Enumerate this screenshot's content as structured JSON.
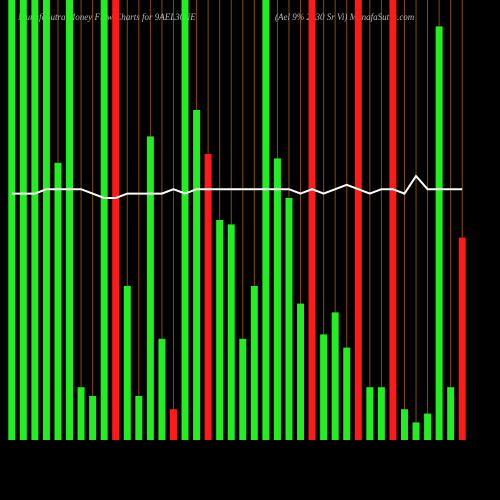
{
  "chart_data": {
    "type": "bar",
    "title": "MunafaSutra Money Flow Charts for 9AEL30NE",
    "subtitle": "(Ael 9% 2030 Sr Vi) MunafaSutra.com",
    "ylim": [
      0,
      100
    ],
    "series": [
      {
        "name": "Money flow",
        "colors": [
          "#22ee22",
          "#22ee22",
          "#22ee22",
          "#22ee22",
          "#22ee22",
          "#22ee22",
          "#22ee22",
          "#22ee22",
          "#22ee22",
          "#ff1a1a",
          "#22ee22",
          "#22ee22",
          "#22ee22",
          "#22ee22",
          "#ff1a1a",
          "#22ee22",
          "#22ee22",
          "#ff1a1a",
          "#22ee22",
          "#22ee22",
          "#22ee22",
          "#22ee22",
          "#22ee22",
          "#22ee22",
          "#22ee22",
          "#22ee22",
          "#ff1a1a",
          "#22ee22",
          "#22ee22",
          "#22ee22",
          "#ff1a1a",
          "#22ee22",
          "#22ee22",
          "#ff1a1a",
          "#22ee22",
          "#22ee22",
          "#22ee22",
          "#22ee22",
          "#22ee22",
          "#ff1a1a"
        ],
        "values": [
          100,
          100,
          100,
          100,
          63,
          100,
          12,
          10,
          100,
          100,
          35,
          10,
          69,
          23,
          7,
          100,
          75,
          65,
          50,
          49,
          23,
          35,
          100,
          64,
          55,
          31,
          100,
          24,
          29,
          21,
          100,
          12,
          12,
          100,
          7,
          4,
          6,
          94,
          12,
          46
        ]
      },
      {
        "name": "Trend",
        "color": "#ffffff",
        "values": [
          56,
          56,
          56,
          57,
          57,
          57,
          57,
          56,
          55,
          55,
          56,
          56,
          56,
          56,
          57,
          56,
          57,
          57,
          57,
          57,
          57,
          57,
          57,
          57,
          57,
          56,
          57,
          56,
          57,
          58,
          57,
          56,
          57,
          57,
          56,
          60,
          57,
          57,
          57,
          57
        ]
      }
    ]
  }
}
